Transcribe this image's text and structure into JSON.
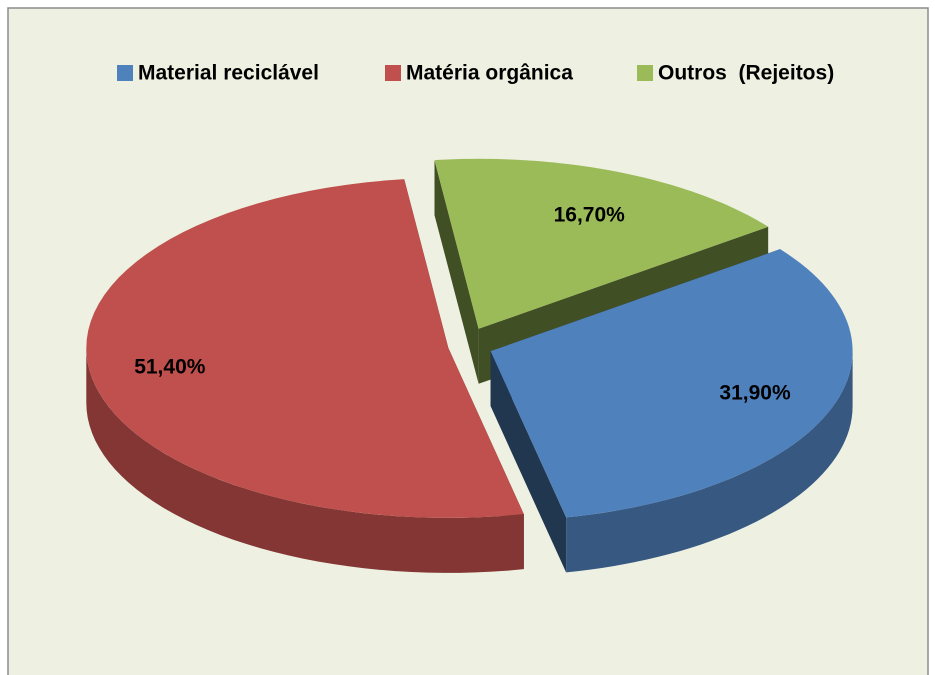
{
  "chart_data": {
    "type": "pie",
    "categories": [
      "Material reciclável",
      "Matéria orgânica",
      "Outros  (Rejeitos)"
    ],
    "values": [
      31.9,
      51.4,
      16.7
    ],
    "value_labels": [
      "31,90%",
      "51,40%",
      "16,70%"
    ],
    "colors": [
      "#4f81bd",
      "#c0504d",
      "#9bbb59"
    ],
    "legend": "top"
  }
}
